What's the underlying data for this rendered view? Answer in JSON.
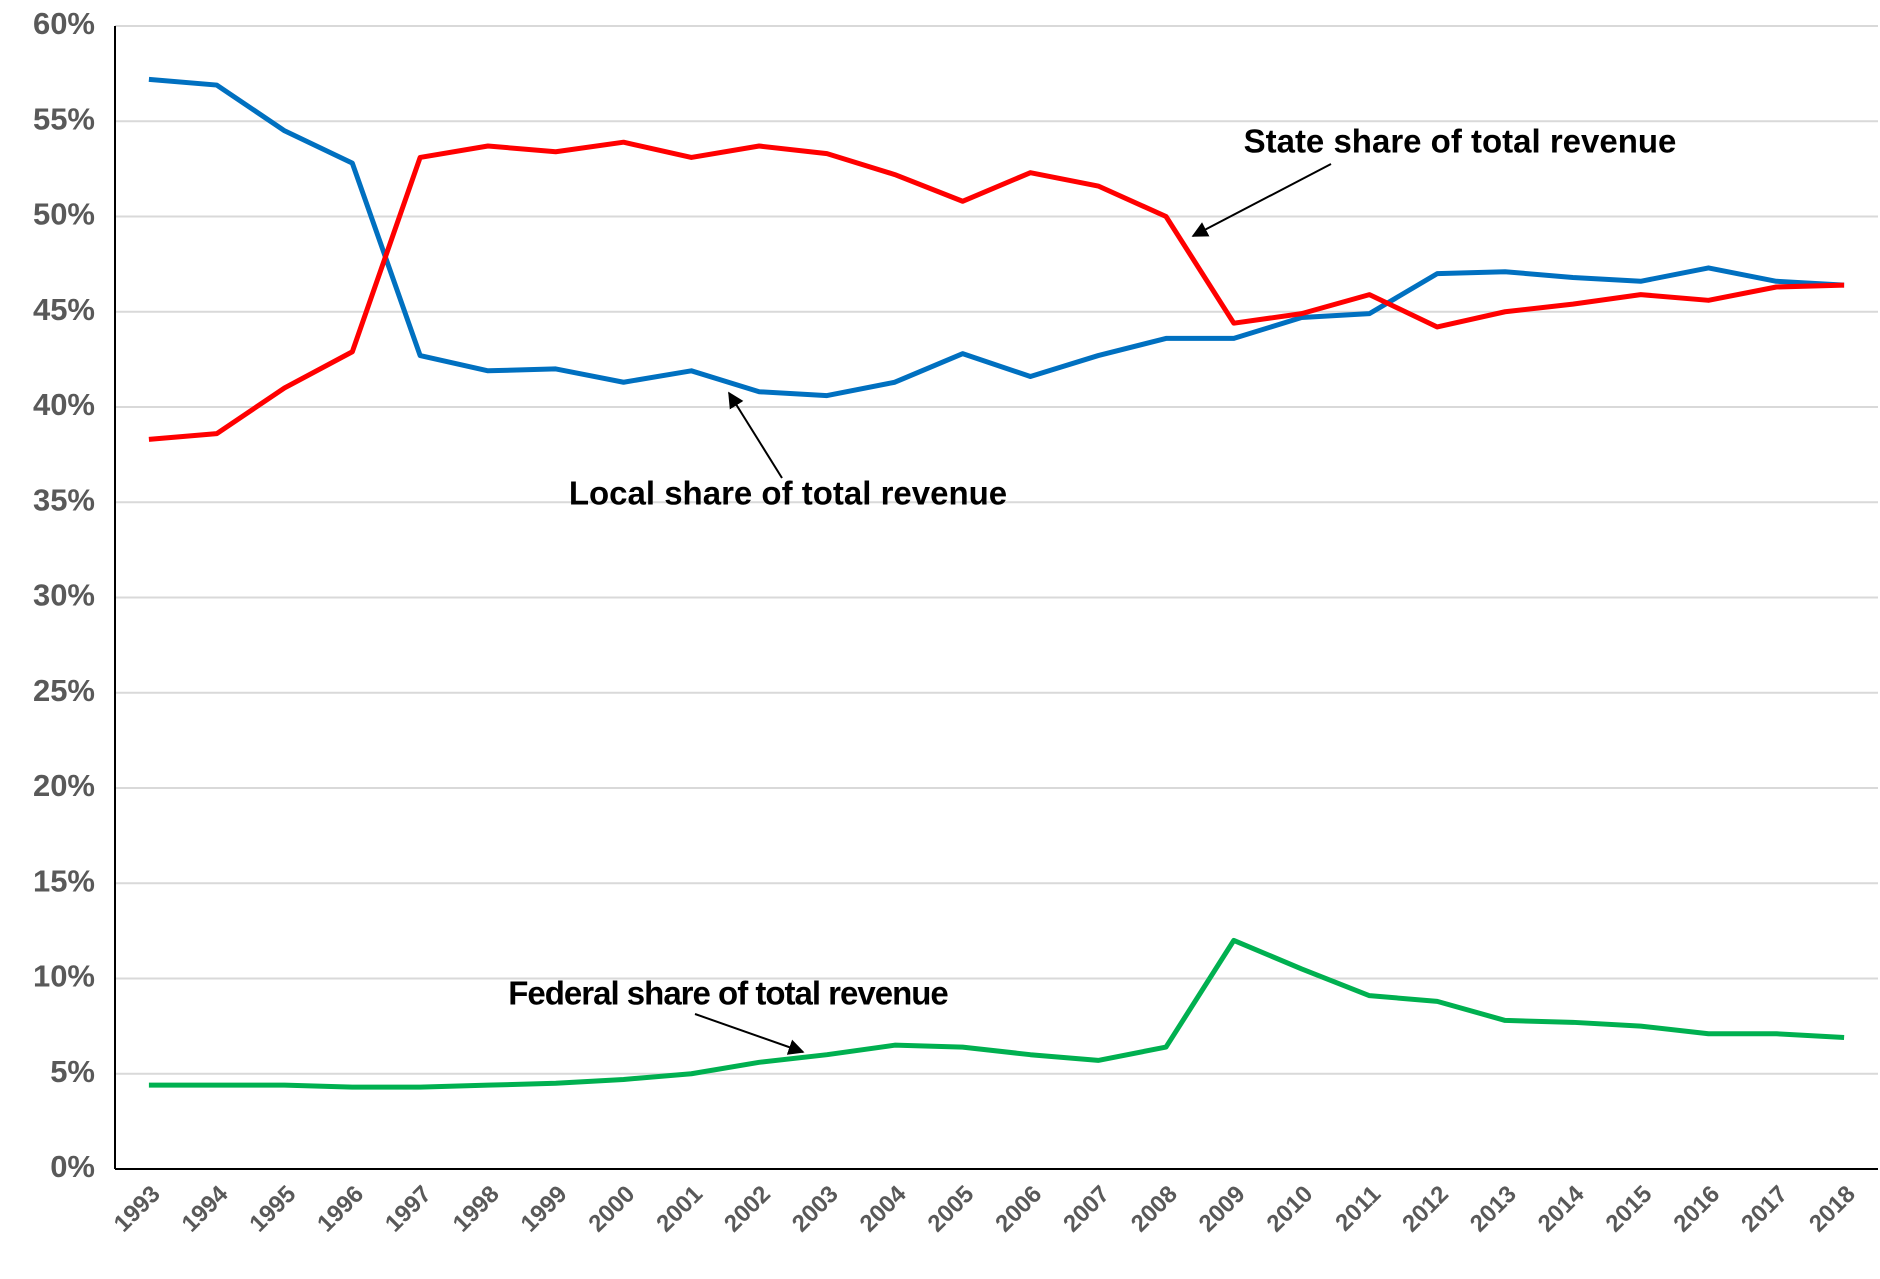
{
  "chart_data": {
    "type": "line",
    "categories": [
      "1993",
      "1994",
      "1995",
      "1996",
      "1997",
      "1998",
      "1999",
      "2000",
      "2001",
      "2002",
      "2003",
      "2004",
      "2005",
      "2006",
      "2007",
      "2008",
      "2009",
      "2010",
      "2011",
      "2012",
      "2013",
      "2014",
      "2015",
      "2016",
      "2017",
      "2018"
    ],
    "series": [
      {
        "name": "Local share of total revenue",
        "color": "#0070c0",
        "values": [
          57.2,
          56.9,
          54.5,
          52.8,
          42.7,
          41.9,
          42.0,
          41.3,
          41.9,
          40.8,
          40.6,
          41.3,
          42.8,
          41.6,
          42.7,
          43.6,
          43.6,
          44.7,
          44.9,
          47.0,
          47.1,
          46.8,
          46.6,
          47.3,
          46.6,
          46.4
        ]
      },
      {
        "name": "State share of total revenue",
        "color": "#ff0000",
        "values": [
          38.3,
          38.6,
          41.0,
          42.9,
          53.1,
          53.7,
          53.4,
          53.9,
          53.1,
          53.7,
          53.3,
          52.2,
          50.8,
          52.3,
          51.6,
          50.0,
          44.4,
          44.9,
          45.9,
          44.2,
          45.0,
          45.4,
          45.9,
          45.6,
          46.3,
          46.4
        ]
      },
      {
        "name": "Federal share of total revenue",
        "color": "#00b050",
        "values": [
          4.4,
          4.4,
          4.4,
          4.3,
          4.3,
          4.4,
          4.5,
          4.7,
          5.0,
          5.6,
          6.0,
          6.5,
          6.4,
          6.0,
          5.7,
          6.4,
          12.0,
          10.5,
          9.1,
          8.8,
          7.8,
          7.7,
          7.5,
          7.1,
          7.1,
          6.9
        ]
      }
    ],
    "ylim": [
      0,
      60
    ],
    "yticks": [
      {
        "value": 0,
        "label": "0%"
      },
      {
        "value": 5,
        "label": "5%"
      },
      {
        "value": 10,
        "label": "10%"
      },
      {
        "value": 15,
        "label": "15%"
      },
      {
        "value": 20,
        "label": "20%"
      },
      {
        "value": 25,
        "label": "25%"
      },
      {
        "value": 30,
        "label": "30%"
      },
      {
        "value": 35,
        "label": "35%"
      },
      {
        "value": 40,
        "label": "40%"
      },
      {
        "value": 45,
        "label": "45%"
      },
      {
        "value": 50,
        "label": "50%"
      },
      {
        "value": 55,
        "label": "55%"
      },
      {
        "value": 60,
        "label": "60%"
      }
    ],
    "grid": true
  }
}
